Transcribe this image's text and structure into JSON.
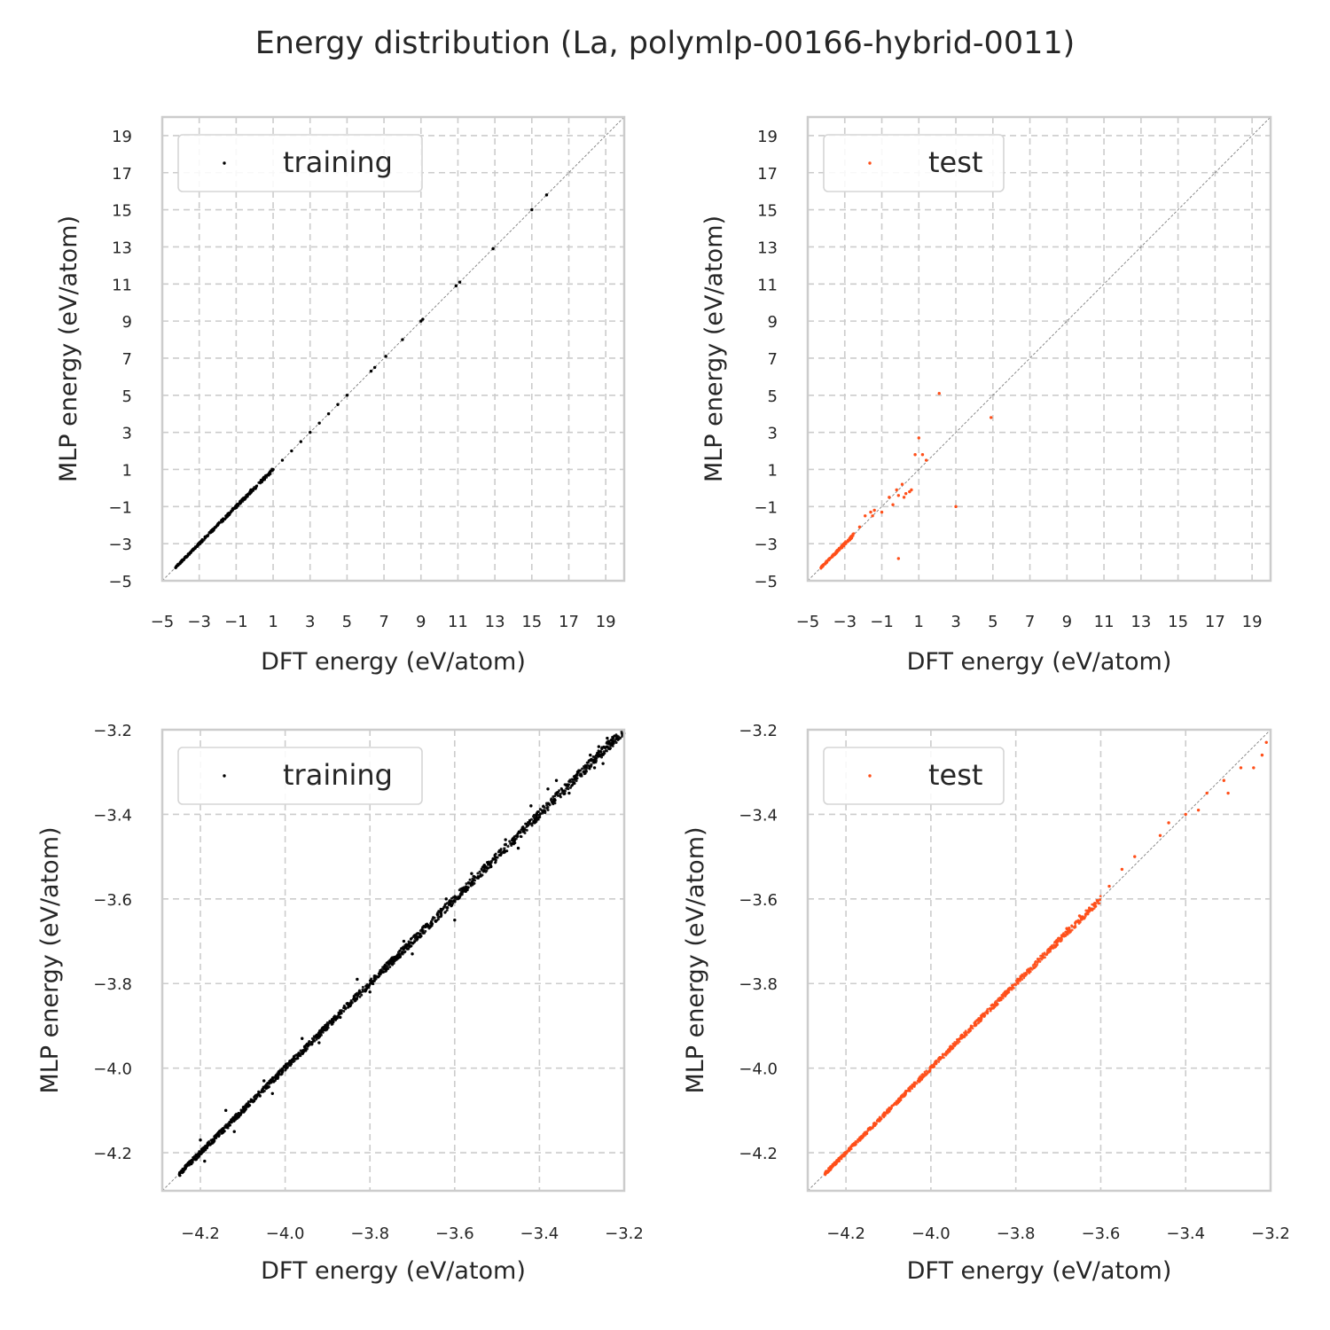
{
  "title": "Energy distribution (La, polymlp-00166-hybrid-0011)",
  "colors": {
    "training": "#000000",
    "test": "#ff4f19"
  },
  "chart_data": [
    {
      "type": "scatter",
      "panel": "top-left",
      "legend": "training",
      "legend_position": "upper-left",
      "xlabel": "DFT energy (eV/atom)",
      "ylabel": "MLP energy (eV/atom)",
      "xlim": [
        -5,
        20
      ],
      "ylim": [
        -5,
        20
      ],
      "xticks": [
        -5,
        -3,
        -1,
        1,
        3,
        5,
        7,
        9,
        11,
        13,
        15,
        17,
        19
      ],
      "yticks": [
        -5,
        -3,
        -1,
        1,
        3,
        5,
        7,
        9,
        11,
        13,
        15,
        17,
        19
      ],
      "grid": true,
      "diagonal": true,
      "points": [
        [
          -4.2,
          -4.2
        ],
        [
          -4.0,
          -4.0
        ],
        [
          -3.8,
          -3.8
        ],
        [
          -3.5,
          -3.5
        ],
        [
          -3.2,
          -3.2
        ],
        [
          -3.0,
          -3.0
        ],
        [
          -2.6,
          -2.6
        ],
        [
          -2.2,
          -2.2
        ],
        [
          -2.0,
          -2.0
        ],
        [
          -1.7,
          -1.7
        ],
        [
          -1.4,
          -1.4
        ],
        [
          -1.1,
          -1.1
        ],
        [
          -0.8,
          -0.8
        ],
        [
          -0.5,
          -0.5
        ],
        [
          -0.2,
          -0.1
        ],
        [
          0.1,
          0.1
        ],
        [
          0.4,
          0.4
        ],
        [
          0.7,
          0.7
        ],
        [
          1.0,
          1.0
        ],
        [
          1.5,
          1.5
        ],
        [
          2.0,
          2.0
        ],
        [
          2.5,
          2.5
        ],
        [
          3.0,
          3.0
        ],
        [
          3.5,
          3.5
        ],
        [
          4.0,
          4.0
        ],
        [
          4.5,
          4.5
        ],
        [
          5.0,
          5.0
        ],
        [
          6.3,
          6.3
        ],
        [
          6.5,
          6.5
        ],
        [
          7.1,
          7.1
        ],
        [
          8.0,
          8.0
        ],
        [
          9.0,
          9.0
        ],
        [
          9.1,
          9.1
        ],
        [
          10.9,
          10.9
        ],
        [
          11.1,
          11.1
        ],
        [
          12.9,
          12.9
        ],
        [
          15.0,
          15.0
        ],
        [
          15.8,
          15.8
        ]
      ],
      "dense_band": {
        "from": -4.3,
        "to": 1.0,
        "count": 320,
        "spread": 0.05
      }
    },
    {
      "type": "scatter",
      "panel": "top-right",
      "legend": "test",
      "legend_position": "upper-left",
      "xlabel": "DFT energy (eV/atom)",
      "ylabel": "MLP energy (eV/atom)",
      "xlim": [
        -5,
        20
      ],
      "ylim": [
        -5,
        20
      ],
      "xticks": [
        -5,
        -3,
        -1,
        1,
        3,
        5,
        7,
        9,
        11,
        13,
        15,
        17,
        19
      ],
      "yticks": [
        -5,
        -3,
        -1,
        1,
        3,
        5,
        7,
        9,
        11,
        13,
        15,
        17,
        19
      ],
      "grid": true,
      "diagonal": true,
      "points": [
        [
          -2.2,
          -2.1
        ],
        [
          -1.9,
          -1.5
        ],
        [
          -1.6,
          -1.3
        ],
        [
          -1.5,
          -1.5
        ],
        [
          -1.4,
          -1.2
        ],
        [
          -1.0,
          -1.3
        ],
        [
          -0.6,
          -0.5
        ],
        [
          -0.4,
          -0.9
        ],
        [
          -0.2,
          -0.1
        ],
        [
          -0.1,
          -0.4
        ],
        [
          -0.1,
          -3.8
        ],
        [
          0.1,
          0.2
        ],
        [
          0.2,
          -0.5
        ],
        [
          0.3,
          -0.3
        ],
        [
          0.5,
          -0.2
        ],
        [
          0.6,
          -0.1
        ],
        [
          0.8,
          1.8
        ],
        [
          1.0,
          2.7
        ],
        [
          1.2,
          1.8
        ],
        [
          1.4,
          1.5
        ],
        [
          2.1,
          5.1
        ],
        [
          3.0,
          -1.0
        ],
        [
          4.9,
          3.8
        ]
      ],
      "dense_band": {
        "from": -4.3,
        "to": -2.5,
        "count": 180,
        "spread": 0.05
      }
    },
    {
      "type": "scatter",
      "panel": "bottom-left",
      "legend": "training",
      "legend_position": "upper-left",
      "xlabel": "DFT energy (eV/atom)",
      "ylabel": "MLP energy (eV/atom)",
      "xlim": [
        -4.29,
        -3.2
      ],
      "ylim": [
        -4.29,
        -3.2
      ],
      "xticks": [
        -4.2,
        -4.0,
        -3.8,
        -3.6,
        -3.4,
        -3.2
      ],
      "yticks": [
        -4.2,
        -4.0,
        -3.8,
        -3.6,
        -3.4,
        -3.2
      ],
      "tick_labels": [
        "−4.2",
        "−4.0",
        "−3.8",
        "−3.6",
        "−3.4",
        "−3.2"
      ],
      "grid": true,
      "diagonal": true,
      "points": [
        [
          -3.38,
          -3.34
        ],
        [
          -3.36,
          -3.32
        ],
        [
          -3.28,
          -3.26
        ],
        [
          -3.27,
          -3.29
        ],
        [
          -3.26,
          -3.24
        ],
        [
          -3.25,
          -3.28
        ],
        [
          -3.24,
          -3.22
        ],
        [
          -3.33,
          -3.35
        ],
        [
          -3.42,
          -3.38
        ],
        [
          -3.53,
          -3.52
        ],
        [
          -3.56,
          -3.54
        ],
        [
          -3.6,
          -3.65
        ],
        [
          -3.62,
          -3.6
        ],
        [
          -3.7,
          -3.73
        ],
        [
          -3.72,
          -3.7
        ],
        [
          -3.8,
          -3.82
        ],
        [
          -3.83,
          -3.79
        ],
        [
          -3.87,
          -3.88
        ],
        [
          -4.03,
          -4.06
        ],
        [
          -4.05,
          -4.03
        ],
        [
          -4.12,
          -4.15
        ],
        [
          -4.14,
          -4.1
        ],
        [
          -4.19,
          -4.22
        ],
        [
          -4.2,
          -4.17
        ],
        [
          -3.92,
          -3.94
        ],
        [
          -3.96,
          -3.93
        ],
        [
          -3.48,
          -3.46
        ],
        [
          -3.45,
          -3.48
        ]
      ],
      "dense_band": {
        "from": -4.25,
        "to": -3.2,
        "count": 1400,
        "spread": 0.006
      }
    },
    {
      "type": "scatter",
      "panel": "bottom-right",
      "legend": "test",
      "legend_position": "upper-left",
      "xlabel": "DFT energy (eV/atom)",
      "ylabel": "MLP energy (eV/atom)",
      "xlim": [
        -4.29,
        -3.2
      ],
      "ylim": [
        -4.29,
        -3.2
      ],
      "xticks": [
        -4.2,
        -4.0,
        -3.8,
        -3.6,
        -3.4,
        -3.2
      ],
      "yticks": [
        -4.2,
        -4.0,
        -3.8,
        -3.6,
        -3.4,
        -3.2
      ],
      "tick_labels": [
        "−4.2",
        "−4.0",
        "−3.8",
        "−3.6",
        "−3.4",
        "−3.2"
      ],
      "grid": true,
      "diagonal": true,
      "points": [
        [
          -3.21,
          -3.23
        ],
        [
          -3.22,
          -3.26
        ],
        [
          -3.24,
          -3.29
        ],
        [
          -3.27,
          -3.29
        ],
        [
          -3.3,
          -3.35
        ],
        [
          -3.31,
          -3.32
        ],
        [
          -3.35,
          -3.35
        ],
        [
          -3.37,
          -3.39
        ],
        [
          -3.4,
          -3.4
        ],
        [
          -3.44,
          -3.42
        ],
        [
          -3.46,
          -3.45
        ],
        [
          -3.52,
          -3.5
        ],
        [
          -3.55,
          -3.53
        ],
        [
          -3.58,
          -3.57
        ],
        [
          -3.65,
          -3.64
        ],
        [
          -3.68,
          -3.67
        ]
      ],
      "dense_band": {
        "from": -4.25,
        "to": -3.6,
        "count": 900,
        "spread": 0.004
      }
    }
  ]
}
